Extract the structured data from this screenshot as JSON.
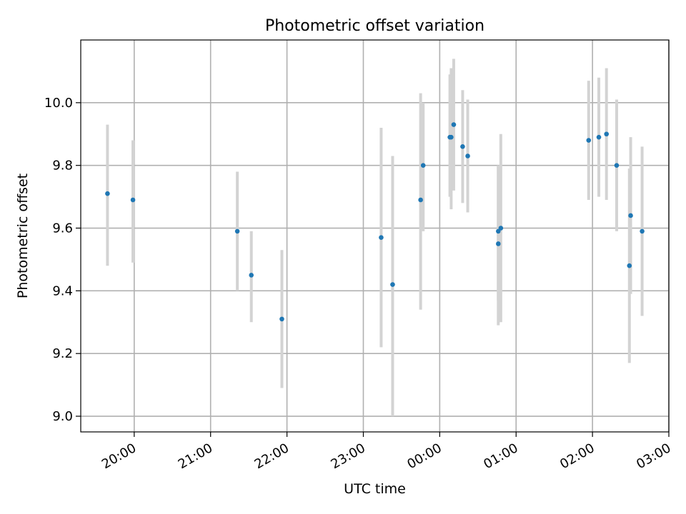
{
  "chart_data": {
    "type": "scatter",
    "title": "Photometric offset variation",
    "xlabel": "UTC time",
    "ylabel": "Photometric offset",
    "x_unit": "UTC time (HH:MM), times after 24:00 fall on the next day",
    "xlim": [
      "19:18",
      "03:00"
    ],
    "ylim": [
      8.95,
      10.2
    ],
    "x_ticks": [
      "20:00",
      "21:00",
      "22:00",
      "23:00",
      "00:00",
      "01:00",
      "02:00",
      "03:00"
    ],
    "y_ticks": [
      "9.0",
      "9.2",
      "9.4",
      "9.6",
      "9.8",
      "10.0"
    ],
    "grid": true,
    "colors": {
      "point": "#1f77b4",
      "error_bar": "#d3d3d3",
      "grid": "#b0b0b0"
    },
    "points": [
      {
        "x": "19:39",
        "y": 9.71,
        "ylo": 9.48,
        "yhi": 9.93
      },
      {
        "x": "19:59",
        "y": 9.69,
        "ylo": 9.49,
        "yhi": 9.88
      },
      {
        "x": "21:21",
        "y": 9.59,
        "ylo": 9.4,
        "yhi": 9.78
      },
      {
        "x": "21:32",
        "y": 9.45,
        "ylo": 9.3,
        "yhi": 9.59
      },
      {
        "x": "21:56",
        "y": 9.31,
        "ylo": 9.09,
        "yhi": 9.53
      },
      {
        "x": "23:14",
        "y": 9.57,
        "ylo": 9.22,
        "yhi": 9.92
      },
      {
        "x": "23:23",
        "y": 9.42,
        "ylo": 9.0,
        "yhi": 9.83
      },
      {
        "x": "23:45",
        "y": 9.69,
        "ylo": 9.34,
        "yhi": 10.03
      },
      {
        "x": "23:47",
        "y": 9.8,
        "ylo": 9.59,
        "yhi": 10.0
      },
      {
        "x": "00:08",
        "y": 9.89,
        "ylo": 9.7,
        "yhi": 10.09
      },
      {
        "x": "00:09",
        "y": 9.89,
        "ylo": 9.66,
        "yhi": 10.11
      },
      {
        "x": "00:11",
        "y": 9.93,
        "ylo": 9.72,
        "yhi": 10.14
      },
      {
        "x": "00:18",
        "y": 9.86,
        "ylo": 9.68,
        "yhi": 10.04
      },
      {
        "x": "00:22",
        "y": 9.83,
        "ylo": 9.65,
        "yhi": 10.01
      },
      {
        "x": "00:46",
        "y": 9.59,
        "ylo": 9.37,
        "yhi": 9.8
      },
      {
        "x": "00:46",
        "y": 9.55,
        "ylo": 9.29,
        "yhi": 9.8
      },
      {
        "x": "00:48",
        "y": 9.6,
        "ylo": 9.3,
        "yhi": 9.9
      },
      {
        "x": "01:57",
        "y": 9.88,
        "ylo": 9.69,
        "yhi": 10.07
      },
      {
        "x": "02:05",
        "y": 9.89,
        "ylo": 9.7,
        "yhi": 10.08
      },
      {
        "x": "02:11",
        "y": 9.9,
        "ylo": 9.69,
        "yhi": 10.11
      },
      {
        "x": "02:19",
        "y": 9.8,
        "ylo": 9.59,
        "yhi": 10.01
      },
      {
        "x": "02:29",
        "y": 9.48,
        "ylo": 9.17,
        "yhi": 9.79
      },
      {
        "x": "02:30",
        "y": 9.64,
        "ylo": 9.39,
        "yhi": 9.89
      },
      {
        "x": "02:39",
        "y": 9.59,
        "ylo": 9.32,
        "yhi": 9.86
      }
    ]
  }
}
